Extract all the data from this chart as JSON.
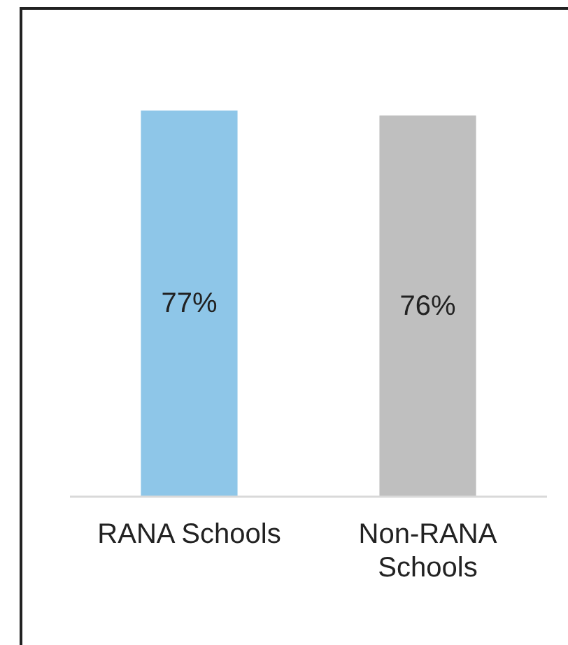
{
  "chart_data": {
    "type": "bar",
    "categories": [
      "RANA Schools",
      "Non-RANA Schools"
    ],
    "values": [
      77,
      76
    ],
    "colors": [
      "#8ec6e8",
      "#bfbfbf"
    ],
    "value_labels": [
      "77%",
      "76%"
    ]
  }
}
